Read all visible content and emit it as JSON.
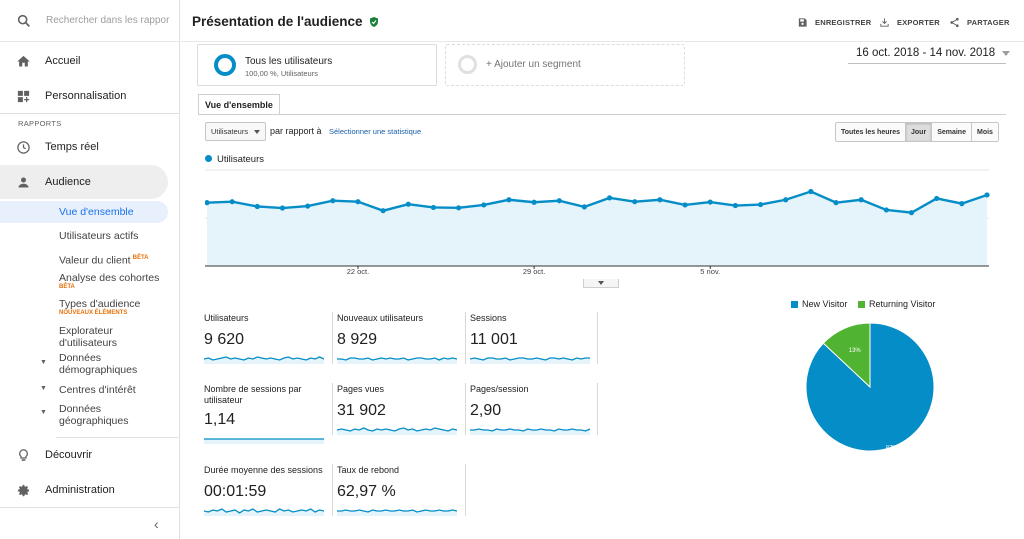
{
  "sidebar": {
    "search_placeholder": "Rechercher dans les rappor",
    "home": "Accueil",
    "custom": "Personnalisation",
    "reports_section": "RAPPORTS",
    "realtime": "Temps réel",
    "audience": "Audience",
    "sub": {
      "overview": "Vue d'ensemble",
      "active_users": "Utilisateurs actifs",
      "lifetime_value": "Valeur du client",
      "lifetime_badge": "BÊTA",
      "cohort": "Analyse des cohortes",
      "cohort_badge": "BÊTA",
      "audiences": "Types d'audience",
      "audiences_badge": "NOUVEAUX ÉLÉMENTS",
      "user_explorer_1": "Explorateur",
      "user_explorer_2": "d'utilisateurs",
      "demographics_1": "Données",
      "demographics_2": "démographiques",
      "interests": "Centres d'intérêt",
      "geo_1": "Données",
      "geo_2": "géographiques"
    },
    "discover": "Découvrir",
    "admin": "Administration"
  },
  "header": {
    "title": "Présentation de l'audience",
    "save": "ENREGISTRER",
    "export": "EXPORTER",
    "share": "PARTAGER"
  },
  "segments": {
    "all_users": "Tous les utilisateurs",
    "all_users_pct": "100,00 %, Utilisateurs",
    "add_segment": "+ Ajouter un segment"
  },
  "date_range": "16 oct. 2018 - 14 nov. 2018",
  "tab_overview": "Vue d'ensemble",
  "controls": {
    "metric_select": "Utilisateurs",
    "vs_label": "par rapport à",
    "select_metric": "Sélectionner une statistique",
    "periods": [
      "Toutes les heures",
      "Jour",
      "Semaine",
      "Mois"
    ],
    "selected_period": "Jour"
  },
  "colors": {
    "accent": "#058dc7",
    "returning": "#50b432",
    "area": "#e5f3fb"
  },
  "chart_data": {
    "type": "area",
    "series": [
      {
        "name": "Utilisateurs",
        "values": [
          330,
          335,
          310,
          302,
          312,
          340,
          335,
          288,
          322,
          305,
          303,
          318,
          345,
          332,
          340,
          308,
          355,
          335,
          345,
          318,
          333,
          315,
          320,
          345,
          388,
          330,
          345,
          292,
          278,
          352,
          325,
          370
        ]
      }
    ],
    "x_ticks": [
      "22 oct.",
      "29 oct.",
      "5 nov."
    ],
    "x_tick_index": [
      6,
      13,
      20
    ],
    "y_ticks": [
      "500",
      "250"
    ],
    "ylim": [
      0,
      500
    ]
  },
  "metrics": [
    {
      "label": "Utilisateurs",
      "value": "9 620"
    },
    {
      "label": "Nouveaux utilisateurs",
      "value": "8 929"
    },
    {
      "label": "Sessions",
      "value": "11 001"
    },
    {
      "label": "Nombre de sessions par utilisateur",
      "value": "1,14"
    },
    {
      "label": "Pages vues",
      "value": "31 902"
    },
    {
      "label": "Pages/session",
      "value": "2,90"
    },
    {
      "label": "Durée moyenne des sessions",
      "value": "00:01:59"
    },
    {
      "label": "Taux de rebond",
      "value": "62,97 %"
    }
  ],
  "pie": {
    "legend": [
      "New Visitor",
      "Returning Visitor"
    ],
    "values": [
      87,
      13
    ],
    "labels": [
      "87%",
      "13%"
    ]
  }
}
